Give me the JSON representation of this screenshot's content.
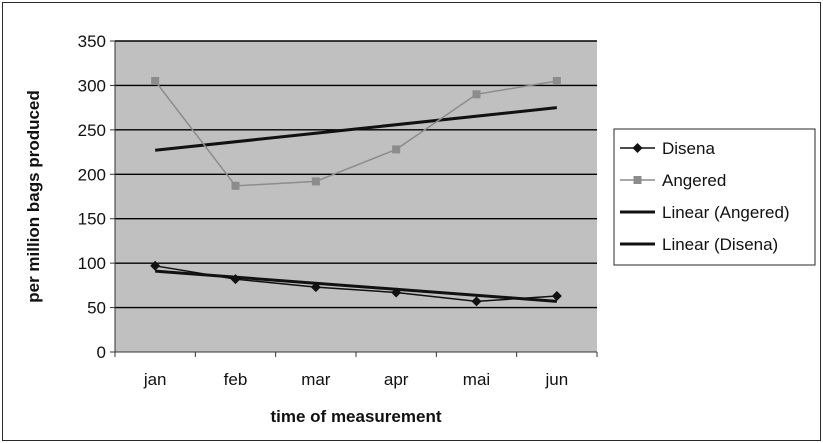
{
  "chart_data": {
    "type": "line",
    "title": "",
    "xlabel": "time of measurement",
    "ylabel": "per million bags produced",
    "categories": [
      "jan",
      "feb",
      "mar",
      "apr",
      "mai",
      "jun"
    ],
    "ylim": [
      0,
      350
    ],
    "yticks": [
      0,
      50,
      100,
      150,
      200,
      250,
      300,
      350
    ],
    "grid": true,
    "plot_background": "#c0c0c0",
    "legend_position": "right",
    "series": [
      {
        "name": "Disena",
        "values": [
          97,
          82,
          73,
          67,
          57,
          63
        ],
        "color": "#111111",
        "marker": "diamond"
      },
      {
        "name": "Angered",
        "values": [
          305,
          187,
          192,
          228,
          290,
          305
        ],
        "color": "#8c8c8c",
        "marker": "square"
      }
    ],
    "trendlines": [
      {
        "name": "Linear (Angered)",
        "start": 227,
        "end": 275,
        "color": "#111111"
      },
      {
        "name": "Linear (Disena)",
        "start": 91,
        "end": 57,
        "color": "#111111"
      }
    ]
  }
}
